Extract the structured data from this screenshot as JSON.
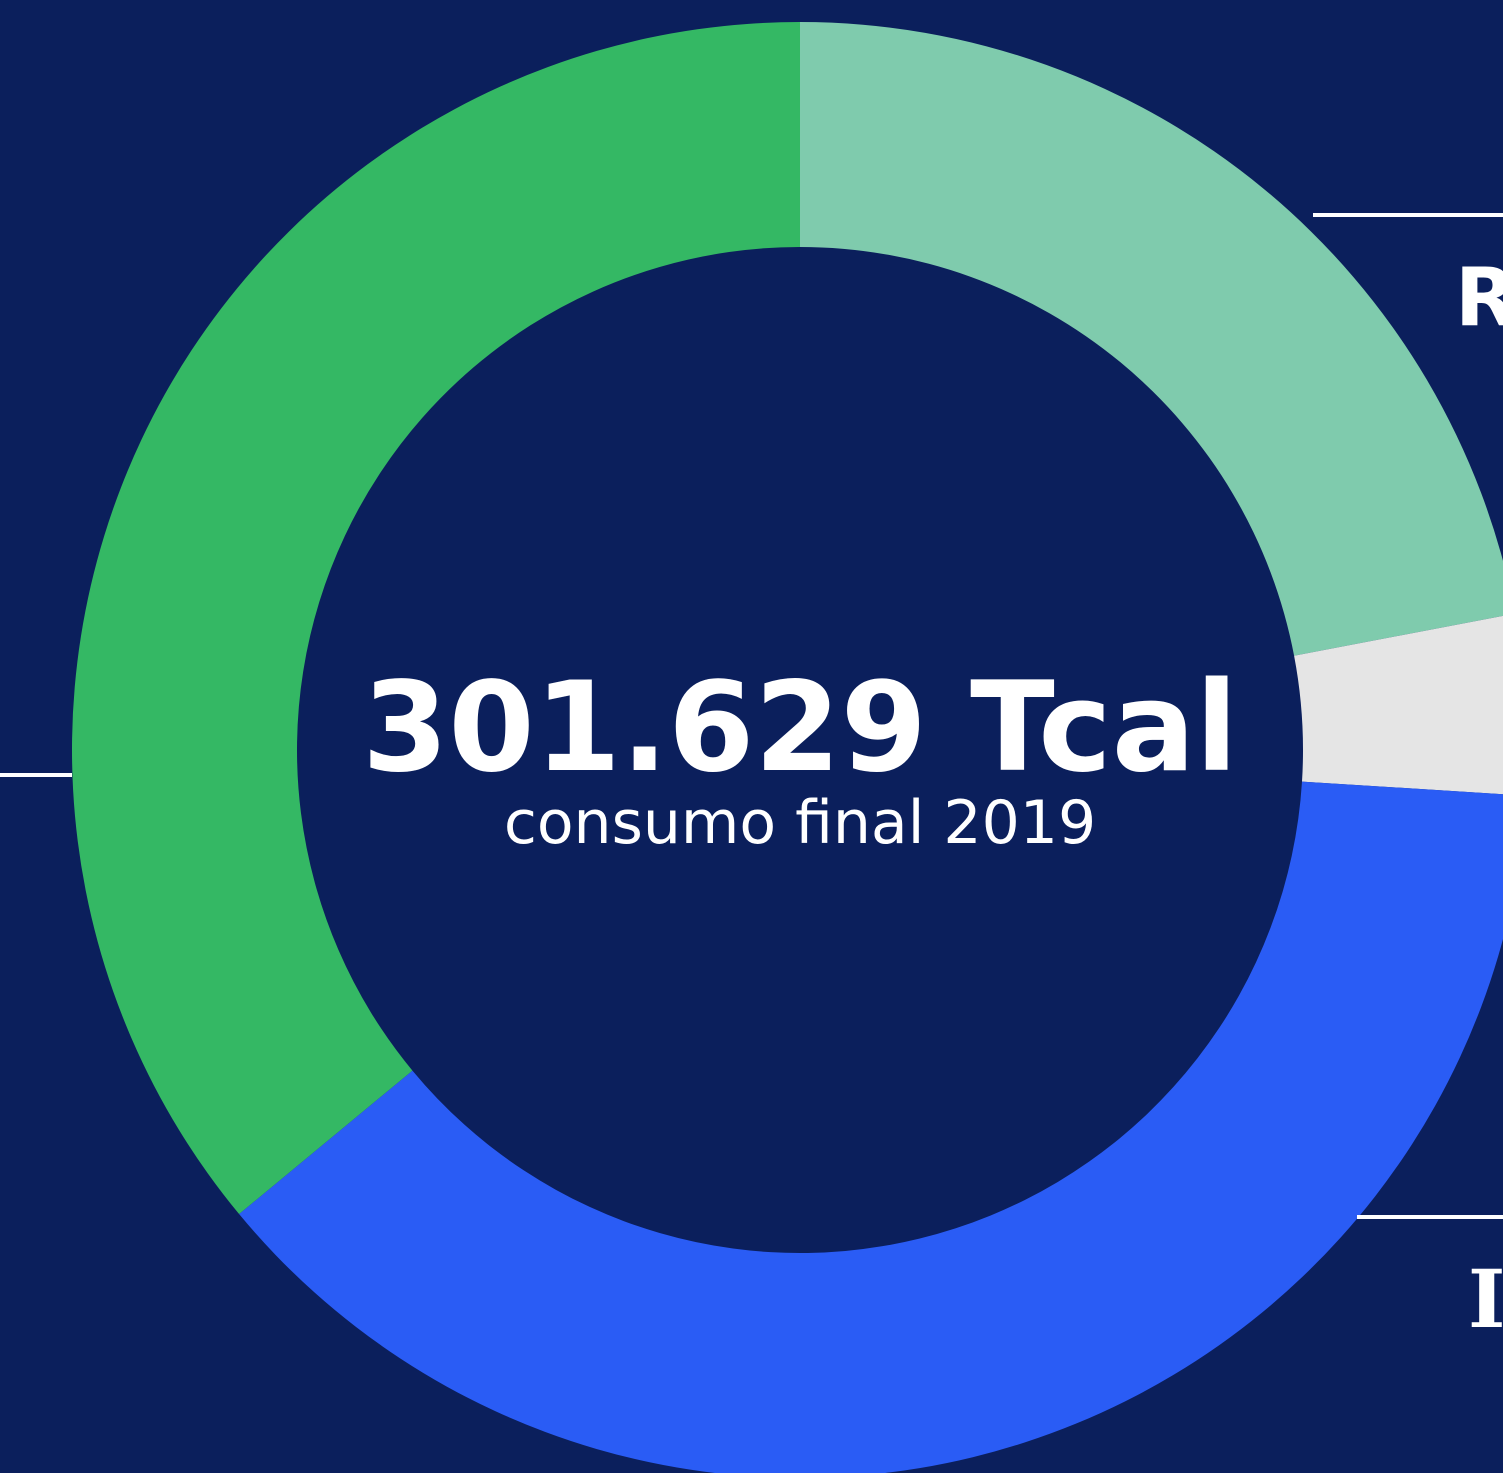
{
  "chart_data": {
    "type": "pie",
    "donut": true,
    "center_title": "301.629 Tcal",
    "center_subtitle": "consumo final 2019",
    "categories": [
      "R",
      null,
      "I",
      null
    ],
    "values": [
      22,
      4,
      38,
      36
    ],
    "colors": [
      "#7fcbad",
      "#e5e5e5",
      "#2a5cf5",
      "#34b864"
    ]
  }
}
